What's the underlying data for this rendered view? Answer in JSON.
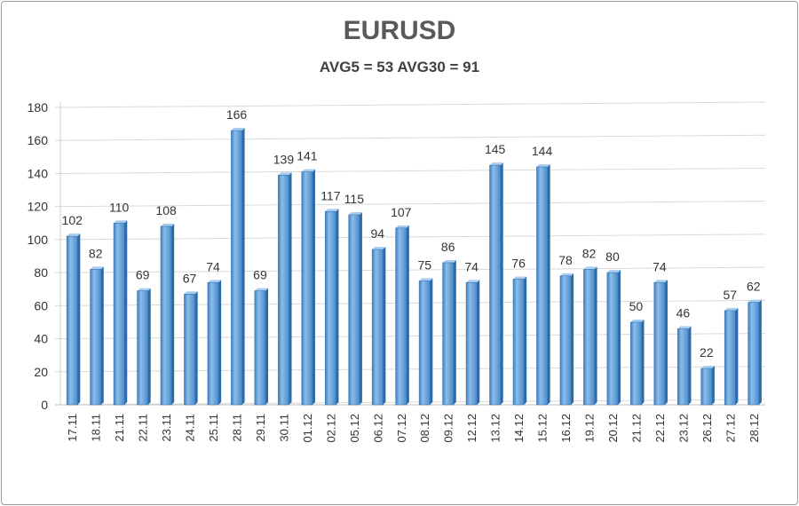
{
  "chart_data": {
    "type": "bar",
    "title": "EURUSD",
    "subtitle": "AVG5 = 53 AVG30 = 91",
    "xlabel": "",
    "ylabel": "",
    "ylim": [
      0,
      180
    ],
    "yticks": [
      0,
      20,
      40,
      60,
      80,
      100,
      120,
      140,
      160,
      180
    ],
    "grid": true,
    "legend": "none",
    "bar_color": "#5b9bd5",
    "categories": [
      "17.11",
      "18.11",
      "21.11",
      "22.11",
      "23.11",
      "24.11",
      "25.11",
      "28.11",
      "29.11",
      "30.11",
      "01.12",
      "02.12",
      "05.12",
      "06.12",
      "07.12",
      "08.12",
      "09.12",
      "12.12",
      "13.12",
      "14.12",
      "15.12",
      "16.12",
      "19.12",
      "20.12",
      "21.12",
      "22.12",
      "23.12",
      "26.12",
      "27.12",
      "28.12"
    ],
    "values": [
      102,
      82,
      110,
      69,
      108,
      67,
      74,
      166,
      69,
      139,
      141,
      117,
      115,
      94,
      107,
      75,
      86,
      74,
      145,
      76,
      144,
      78,
      82,
      80,
      50,
      74,
      46,
      22,
      57,
      62
    ]
  }
}
